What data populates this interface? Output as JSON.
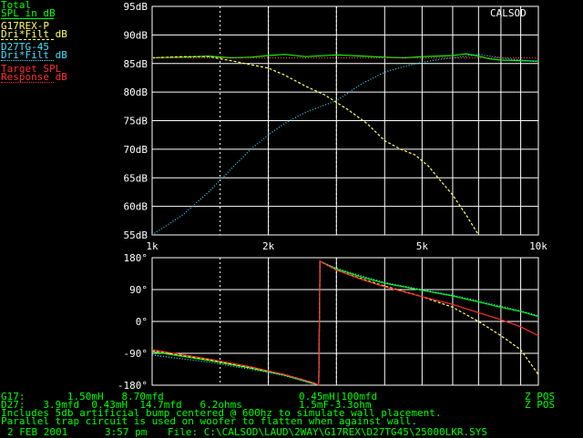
{
  "app": "CALSOD",
  "colors": {
    "background": "#000000",
    "grid": "#ffffff",
    "total": "#00ff00",
    "woofer": "#ffff66",
    "tweeter": "#40e0ff",
    "target": "#ff3030",
    "text_green": "#00ff00"
  },
  "legend": [
    {
      "line1": "Total",
      "line2": "SPL in dB",
      "color": "#00ff00"
    },
    {
      "line1": "G17REX-P",
      "line2": "Dri*Filt dB",
      "color": "#ffff66"
    },
    {
      "line1": "D27TG-45",
      "line2": "Dri*Filt dB",
      "color": "#40e0ff"
    },
    {
      "line1": "Target SPL",
      "line2": "Response dB",
      "color": "#ff3030"
    }
  ],
  "chart_data": [
    {
      "type": "line",
      "x_scale": "log",
      "xlim": [
        1000,
        10000
      ],
      "ylim": [
        55,
        95
      ],
      "x_ticks": [
        {
          "value": 1000,
          "label": "1k"
        },
        {
          "value": 2000,
          "label": "2k"
        },
        {
          "value": 5000,
          "label": "5k"
        },
        {
          "value": 10000,
          "label": "10k"
        }
      ],
      "y_ticks": [
        {
          "value": 95,
          "label": "95dB"
        },
        {
          "value": 90,
          "label": "90dB"
        },
        {
          "value": 85,
          "label": "85dB"
        },
        {
          "value": 80,
          "label": "80dB"
        },
        {
          "value": 75,
          "label": "75dB"
        },
        {
          "value": 70,
          "label": "70dB"
        },
        {
          "value": 65,
          "label": "65dB"
        },
        {
          "value": 60,
          "label": "60dB"
        },
        {
          "value": 55,
          "label": "55dB"
        }
      ],
      "series": [
        {
          "name": "Total",
          "color": "#00ff00",
          "style": "solid",
          "x": [
            1000,
            1200,
            1400,
            1600,
            1800,
            2000,
            2200,
            2500,
            3000,
            3500,
            4000,
            4500,
            5000,
            5500,
            6000,
            6500,
            7000,
            7500,
            8000,
            9000,
            10000
          ],
          "y": [
            86,
            86.1,
            86.3,
            86,
            86.1,
            86.4,
            86.6,
            86.2,
            86.5,
            86.3,
            86.1,
            86,
            86.2,
            86.3,
            86.4,
            86.7,
            86.3,
            85.8,
            85.6,
            85.5,
            85.4
          ]
        },
        {
          "name": "G17REX-P",
          "color": "#ffff66",
          "style": "dashed",
          "x": [
            1000,
            1200,
            1400,
            1600,
            1800,
            2000,
            2200,
            2500,
            2800,
            3200,
            3600,
            4000,
            4400,
            4800,
            5200,
            5500,
            6000,
            6500,
            7000
          ],
          "y": [
            86,
            86.2,
            86.2,
            85.5,
            84.8,
            84.2,
            83,
            81,
            79.5,
            77,
            74.5,
            71.5,
            70,
            69,
            67,
            65,
            62,
            58.5,
            55
          ]
        },
        {
          "name": "D27TG-45",
          "color": "#40e0ff",
          "style": "dotted",
          "x": [
            1000,
            1200,
            1400,
            1600,
            1800,
            2000,
            2200,
            2500,
            3000,
            3500,
            4000,
            4500,
            5000,
            5500,
            6000,
            6500,
            7000,
            8000,
            9000,
            10000
          ],
          "y": [
            55,
            58.5,
            62.5,
            66.5,
            70,
            72.5,
            74.5,
            76.5,
            78.5,
            81.5,
            83.5,
            84.5,
            85.2,
            85.7,
            86,
            86.3,
            86.6,
            86,
            85.6,
            85.3
          ]
        },
        {
          "name": "Target SPL",
          "color": "#ff3030",
          "style": "dotted",
          "x": [
            1000,
            10000
          ],
          "y": [
            86,
            86
          ]
        }
      ]
    },
    {
      "type": "line",
      "x_scale": "log",
      "xlim": [
        1000,
        10000
      ],
      "ylim": [
        -180,
        180
      ],
      "y_ticks": [
        {
          "value": 180,
          "label": "180°"
        },
        {
          "value": 90,
          "label": "90°"
        },
        {
          "value": 0,
          "label": "0°"
        },
        {
          "value": -90,
          "label": "-90°"
        },
        {
          "value": -180,
          "label": "-180°"
        }
      ],
      "series": [
        {
          "name": "Total",
          "color": "#00ff00",
          "style": "solid",
          "x": [
            1000,
            1400,
            1800,
            2200,
            2600,
            2700,
            2720,
            3000,
            3500,
            4000,
            5000,
            6000,
            7000,
            8000,
            9000,
            10000
          ],
          "y": [
            -85,
            -110,
            -132,
            -152,
            -175,
            -179,
            170,
            148,
            125,
            108,
            88,
            72,
            55,
            40,
            28,
            14
          ]
        },
        {
          "name": "G17REX-P",
          "color": "#ffff66",
          "style": "dashed",
          "x": [
            1000,
            1400,
            1800,
            2200,
            2600,
            2700,
            2720,
            3000,
            3500,
            4000,
            5000,
            6000,
            7000,
            8000,
            9000,
            10000
          ],
          "y": [
            -82,
            -108,
            -130,
            -150,
            -172,
            -179,
            170,
            145,
            120,
            100,
            70,
            40,
            0,
            -40,
            -80,
            -150
          ]
        },
        {
          "name": "D27TG-45",
          "color": "#40e0ff",
          "style": "dotted",
          "x": [
            1000,
            1400,
            1800,
            2200,
            2600,
            2700,
            2720,
            3000,
            3500,
            4000,
            5000,
            6000,
            7000,
            8000,
            9000,
            10000
          ],
          "y": [
            -95,
            -115,
            -135,
            -153,
            -175,
            -179,
            170,
            150,
            128,
            110,
            90,
            74,
            58,
            43,
            30,
            16
          ]
        },
        {
          "name": "Target SPL",
          "color": "#ff3030",
          "style": "solid",
          "x": [
            1000,
            1400,
            1800,
            2200,
            2600,
            2700,
            2720,
            3000,
            3500,
            4000,
            5000,
            6000,
            7000,
            8000,
            9000,
            10000
          ],
          "y": [
            -80,
            -106,
            -128,
            -150,
            -172,
            -179,
            170,
            145,
            118,
            98,
            70,
            48,
            25,
            5,
            -15,
            -40
          ]
        }
      ]
    }
  ],
  "info_lines": [
    {
      "left": "G17:       1.50mH   8.70mfd",
      "middle": "0.45mH|100mfd",
      "right": "Z POS"
    },
    {
      "left": "D27:   3.9mfd  0.43mH  14.7mfd   6.2ohms",
      "middle": "1.5mF-3.3ohm",
      "right": "Z POS"
    },
    {
      "left": "Includes 5db artificial bump centered @ 600hz to simulate wall placement.",
      "middle": "",
      "right": ""
    },
    {
      "left": "Parallel trap circuit is used on woofer to flatten when against wall.",
      "middle": "",
      "right": ""
    }
  ],
  "footer": {
    "date": "2 FEB 2001",
    "time": "3:57 pm",
    "file": "File: C:\\CALSOD\\LAUD\\2WAY\\G17REX\\D27TG45\\25000LKR.SYS"
  }
}
